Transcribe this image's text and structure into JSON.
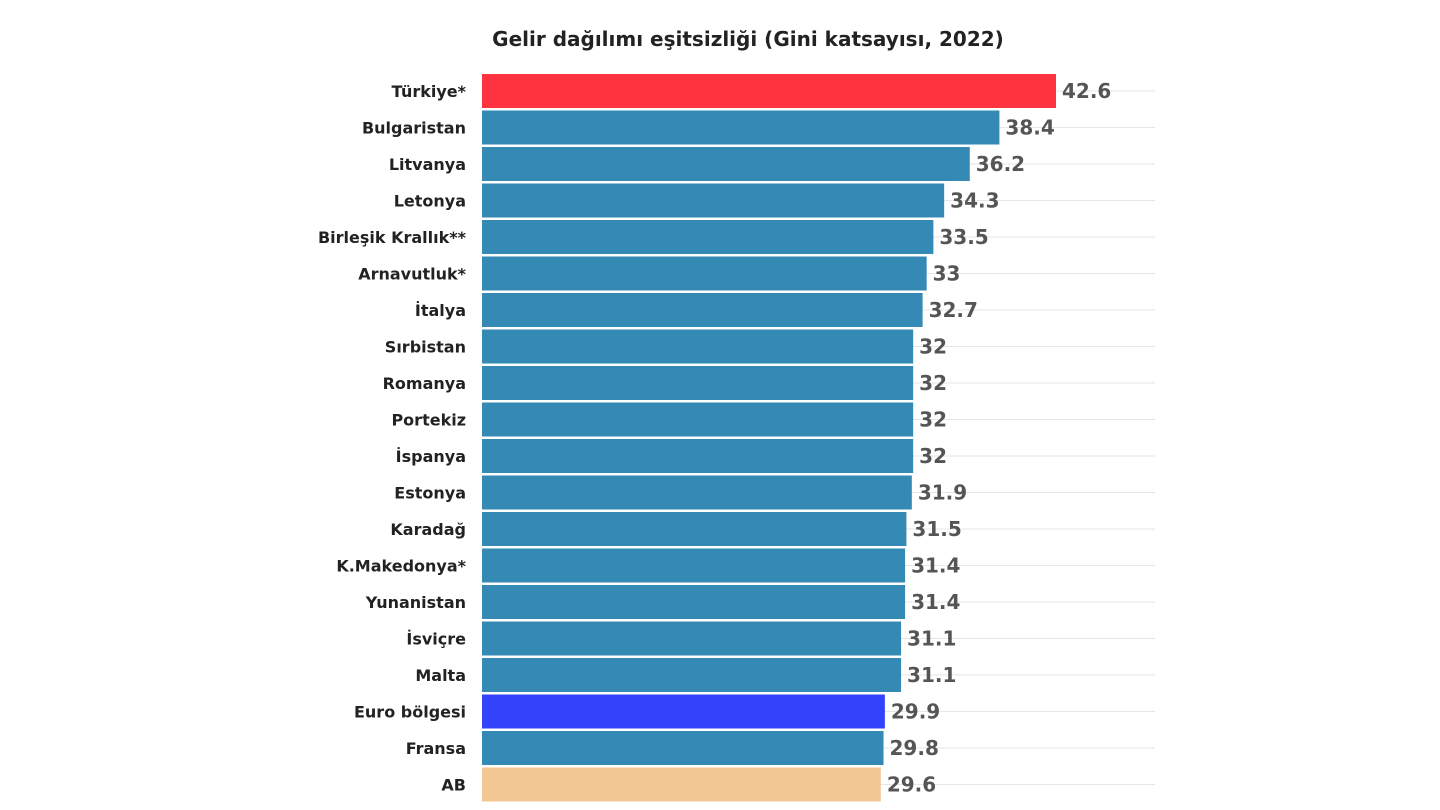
{
  "chart_data": {
    "type": "bar",
    "orientation": "horizontal",
    "title": "Gelir dağılımı eşitsizliği (Gini katsayısı, 2022)",
    "xlabel": "",
    "ylabel": "",
    "xlim": [
      0,
      42.6
    ],
    "grid": true,
    "categories": [
      "Türkiye*",
      "Bulgaristan",
      "Litvanya",
      "Letonya",
      "Birleşik Krallık**",
      "Arnavutluk*",
      "İtalya",
      "Sırbistan",
      "Romanya",
      "Portekiz",
      "İspanya",
      "Estonya",
      "Karadağ",
      "K.Makedonya*",
      "Yunanistan",
      "İsviçre",
      "Malta",
      "Euro bölgesi",
      "Fransa",
      "AB"
    ],
    "values": [
      42.6,
      38.4,
      36.2,
      34.3,
      33.5,
      33,
      32.7,
      32,
      32,
      32,
      32,
      31.9,
      31.5,
      31.4,
      31.4,
      31.1,
      31.1,
      29.9,
      29.8,
      29.6
    ],
    "value_labels": [
      "42.6",
      "38.4",
      "36.2",
      "34.3",
      "33.5",
      "33",
      "32.7",
      "32",
      "32",
      "32",
      "32",
      "31.9",
      "31.5",
      "31.4",
      "31.4",
      "31.1",
      "31.1",
      "29.9",
      "29.8",
      "29.6"
    ],
    "colors": {
      "default": "#3589b5",
      "highlight": "#fe3340",
      "euro_area": "#3343fb",
      "eu": "#f3c894"
    },
    "bar_colors": [
      "#fe3340",
      "#3589b5",
      "#3589b5",
      "#3589b5",
      "#3589b5",
      "#3589b5",
      "#3589b5",
      "#3589b5",
      "#3589b5",
      "#3589b5",
      "#3589b5",
      "#3589b5",
      "#3589b5",
      "#3589b5",
      "#3589b5",
      "#3589b5",
      "#3589b5",
      "#3343fb",
      "#3589b5",
      "#f3c894"
    ]
  }
}
